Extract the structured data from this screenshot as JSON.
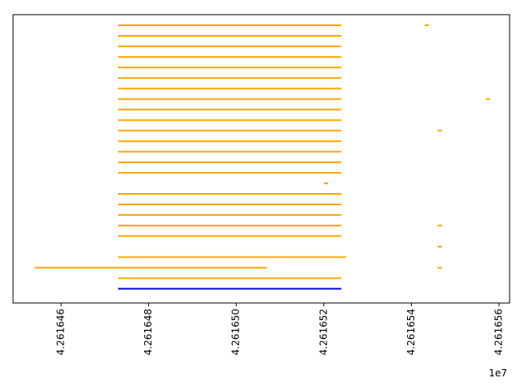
{
  "chart_data": {
    "type": "gantt",
    "title": "",
    "xlabel": "",
    "ylabel": "",
    "x_offset_label": "1e7",
    "xlim": [
      4.2616454,
      4.2616562
    ],
    "x_ticks": [
      4.261646,
      4.261648,
      4.26165,
      4.261652,
      4.261654,
      4.261656
    ],
    "x_tick_labels": [
      "4.261646",
      "4.261648",
      "4.261650",
      "4.261652",
      "4.261654",
      "4.261656"
    ],
    "grid": false,
    "colors": {
      "orange": "#ffa500",
      "blue": "#0000cd"
    },
    "rows": [
      {
        "segments": [
          [
            4.2616473,
            4.2616524,
            "orange"
          ],
          [
            4.2616543,
            4.2616544,
            "orange"
          ]
        ]
      },
      {
        "segments": [
          [
            4.2616473,
            4.2616524,
            "orange"
          ]
        ]
      },
      {
        "segments": [
          [
            4.2616473,
            4.2616524,
            "orange"
          ]
        ]
      },
      {
        "segments": [
          [
            4.2616473,
            4.2616524,
            "orange"
          ]
        ]
      },
      {
        "segments": [
          [
            4.2616473,
            4.2616524,
            "orange"
          ]
        ]
      },
      {
        "segments": [
          [
            4.2616473,
            4.2616524,
            "orange"
          ]
        ]
      },
      {
        "segments": [
          [
            4.2616473,
            4.2616524,
            "orange"
          ]
        ]
      },
      {
        "segments": [
          [
            4.2616473,
            4.2616524,
            "orange"
          ],
          [
            4.2616557,
            4.2616558,
            "orange"
          ]
        ]
      },
      {
        "segments": [
          [
            4.2616473,
            4.2616524,
            "orange"
          ]
        ]
      },
      {
        "segments": [
          [
            4.2616473,
            4.2616524,
            "orange"
          ]
        ]
      },
      {
        "segments": [
          [
            4.2616473,
            4.2616524,
            "orange"
          ],
          [
            4.2616546,
            4.2616547,
            "orange"
          ]
        ]
      },
      {
        "segments": [
          [
            4.2616473,
            4.2616524,
            "orange"
          ]
        ]
      },
      {
        "segments": [
          [
            4.2616473,
            4.2616524,
            "orange"
          ]
        ]
      },
      {
        "segments": [
          [
            4.2616473,
            4.2616524,
            "orange"
          ]
        ]
      },
      {
        "segments": [
          [
            4.2616473,
            4.2616524,
            "orange"
          ]
        ]
      },
      {
        "segments": [
          [
            4.261652,
            4.2616521,
            "orange"
          ]
        ]
      },
      {
        "segments": [
          [
            4.2616473,
            4.2616524,
            "orange"
          ]
        ]
      },
      {
        "segments": [
          [
            4.2616473,
            4.2616524,
            "orange"
          ]
        ]
      },
      {
        "segments": [
          [
            4.2616473,
            4.2616524,
            "orange"
          ]
        ]
      },
      {
        "segments": [
          [
            4.2616473,
            4.2616524,
            "orange"
          ],
          [
            4.2616546,
            4.2616547,
            "orange"
          ]
        ]
      },
      {
        "segments": [
          [
            4.2616473,
            4.2616524,
            "orange"
          ]
        ]
      },
      {
        "segments": [
          [
            4.2616546,
            4.2616547,
            "orange"
          ]
        ]
      },
      {
        "segments": [
          [
            4.2616473,
            4.2616525,
            "orange"
          ]
        ]
      },
      {
        "segments": [
          [
            4.2616454,
            4.2616507,
            "orange"
          ],
          [
            4.2616546,
            4.2616547,
            "orange"
          ]
        ]
      },
      {
        "segments": [
          [
            4.2616473,
            4.2616524,
            "orange"
          ]
        ]
      },
      {
        "segments": [
          [
            4.2616473,
            4.2616524,
            "blue"
          ]
        ]
      }
    ]
  }
}
